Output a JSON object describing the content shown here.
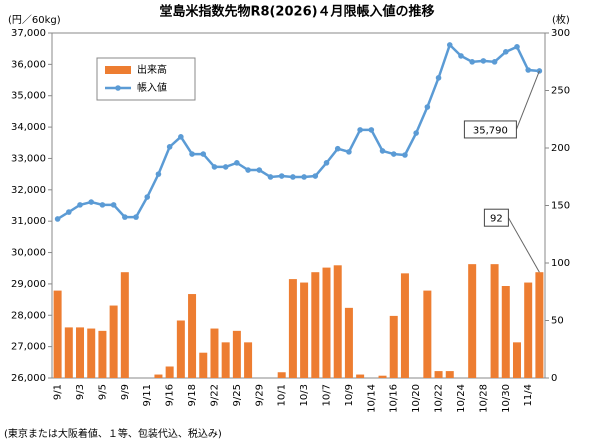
{
  "chart_data": {
    "type": "bar_line",
    "title": "堂島米指数先物R8(2026)４月限帳入値の推移",
    "y_label": "(円／60kg)",
    "y2_label": "(枚)",
    "footnote": "(東京または大阪着値、１等、包装代込、税込み)",
    "legend": "upper left",
    "categories": [
      "9/1",
      null,
      "9/3",
      null,
      "9/5",
      null,
      "9/9",
      null,
      "9/11",
      null,
      "9/16",
      null,
      "9/18",
      null,
      "9/22",
      null,
      "9/25",
      null,
      "9/29",
      null,
      "10/1",
      null,
      "10/3",
      null,
      "10/7",
      null,
      "10/9",
      null,
      "10/14",
      null,
      "10/16",
      null,
      "10/20",
      null,
      "10/22",
      null,
      "10/24",
      null,
      "10/28",
      null,
      "10/30",
      null,
      "11/4",
      null
    ],
    "series": [
      {
        "name": "出来高",
        "type": "bar",
        "axis": "y2",
        "color": "#ED7D31",
        "values": [
          76,
          44,
          44,
          43,
          41,
          63,
          92,
          0,
          0,
          3,
          10,
          50,
          73,
          22,
          43,
          31,
          41,
          31,
          0,
          0,
          5,
          86,
          83,
          92,
          96,
          98,
          61,
          3,
          0,
          2,
          54,
          91,
          0,
          76,
          6,
          6,
          0,
          99,
          0,
          99,
          80,
          31,
          83,
          92
        ],
        "value_labels": [
          null,
          null,
          null,
          null,
          null,
          null,
          null,
          null,
          null,
          null,
          null,
          null,
          null,
          null,
          null,
          null,
          null,
          null,
          null,
          null,
          null,
          null,
          null,
          null,
          null,
          null,
          null,
          null,
          null,
          null,
          null,
          null,
          null,
          null,
          null,
          null,
          null,
          null,
          null,
          null,
          null,
          null,
          null,
          "92"
        ]
      },
      {
        "name": "帳入値",
        "type": "line",
        "axis": "y",
        "color": "#5B9BD5",
        "values": [
          31070,
          31290,
          31520,
          31610,
          31520,
          31520,
          31130,
          31130,
          31770,
          32500,
          33370,
          33690,
          33140,
          33140,
          32730,
          32730,
          32860,
          32630,
          32630,
          32410,
          32440,
          32410,
          32410,
          32440,
          32860,
          33310,
          33210,
          33910,
          33910,
          33240,
          33140,
          33110,
          33810,
          34640,
          35570,
          36620,
          36270,
          36080,
          36110,
          36080,
          36400,
          36560,
          35820,
          35790
        ],
        "value_labels": [
          null,
          null,
          null,
          null,
          null,
          null,
          null,
          null,
          null,
          null,
          null,
          null,
          null,
          null,
          null,
          null,
          null,
          null,
          null,
          null,
          null,
          null,
          null,
          null,
          null,
          null,
          null,
          null,
          null,
          null,
          null,
          null,
          null,
          null,
          null,
          null,
          null,
          null,
          null,
          null,
          null,
          null,
          null,
          "35,790"
        ]
      }
    ],
    "ylim": [
      26000,
      37000
    ],
    "yticks": [
      {
        "value": 26000,
        "label": "26,000"
      },
      {
        "value": 27000,
        "label": "27,000"
      },
      {
        "value": 28000,
        "label": "28,000"
      },
      {
        "value": 29000,
        "label": "29,000"
      },
      {
        "value": 30000,
        "label": "30,000"
      },
      {
        "value": 31000,
        "label": "31,000"
      },
      {
        "value": 32000,
        "label": "32,000"
      },
      {
        "value": 33000,
        "label": "33,000"
      },
      {
        "value": 34000,
        "label": "34,000"
      },
      {
        "value": 35000,
        "label": "35,000"
      },
      {
        "value": 36000,
        "label": "36,000"
      },
      {
        "value": 37000,
        "label": "37,000"
      }
    ],
    "y2lim": [
      0,
      300
    ],
    "y2ticks": [
      0,
      50,
      100,
      150,
      200,
      250,
      300
    ],
    "grid": false
  }
}
